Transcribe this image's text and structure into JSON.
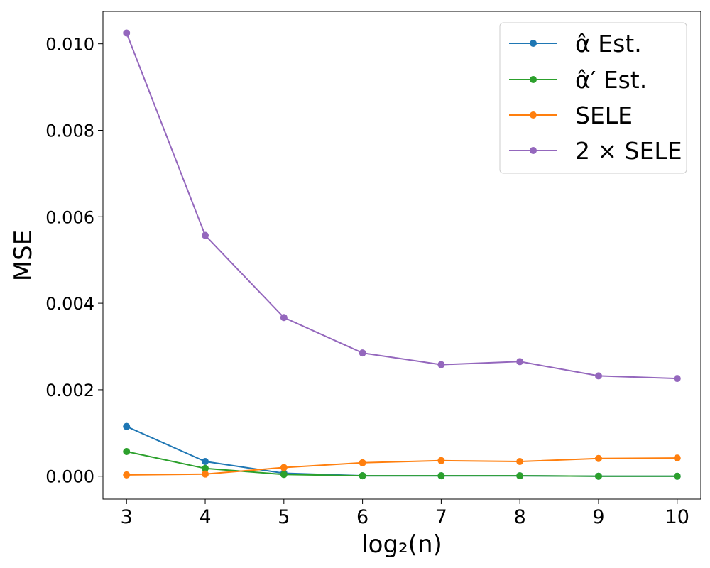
{
  "chart_data": {
    "type": "line",
    "xlabel": "log₂(n)",
    "ylabel": "MSE",
    "xlim": [
      2.7,
      10.3
    ],
    "ylim": [
      -0.00053,
      0.01075
    ],
    "x": [
      3,
      4,
      5,
      6,
      7,
      8,
      9,
      10
    ],
    "xticks": [
      "3",
      "4",
      "5",
      "6",
      "7",
      "8",
      "9",
      "10"
    ],
    "yticks": [
      "0.000",
      "0.002",
      "0.004",
      "0.006",
      "0.008",
      "0.010"
    ],
    "ytick_values": [
      0.0,
      0.002,
      0.004,
      0.006,
      0.008,
      0.01
    ],
    "grid": false,
    "legend_position": "upper-right",
    "series": [
      {
        "name": "α̂ Est.",
        "color": "#1f77b4",
        "values": [
          0.00115,
          0.00034,
          7e-05,
          1e-05,
          1e-05,
          1e-05,
          0.0,
          0.0
        ]
      },
      {
        "name": "α̂′ Est.",
        "color": "#2ca02c",
        "values": [
          0.00057,
          0.00018,
          4e-05,
          1e-05,
          1e-05,
          1e-05,
          0.0,
          0.0
        ]
      },
      {
        "name": "SELE",
        "color": "#ff7f0e",
        "values": [
          3e-05,
          5e-05,
          0.0002,
          0.00031,
          0.00036,
          0.00034,
          0.00041,
          0.00042
        ]
      },
      {
        "name": "2 × SELE",
        "color": "#9467bd",
        "values": [
          0.01025,
          0.00557,
          0.00367,
          0.00285,
          0.00258,
          0.00265,
          0.00232,
          0.00226
        ]
      }
    ]
  }
}
